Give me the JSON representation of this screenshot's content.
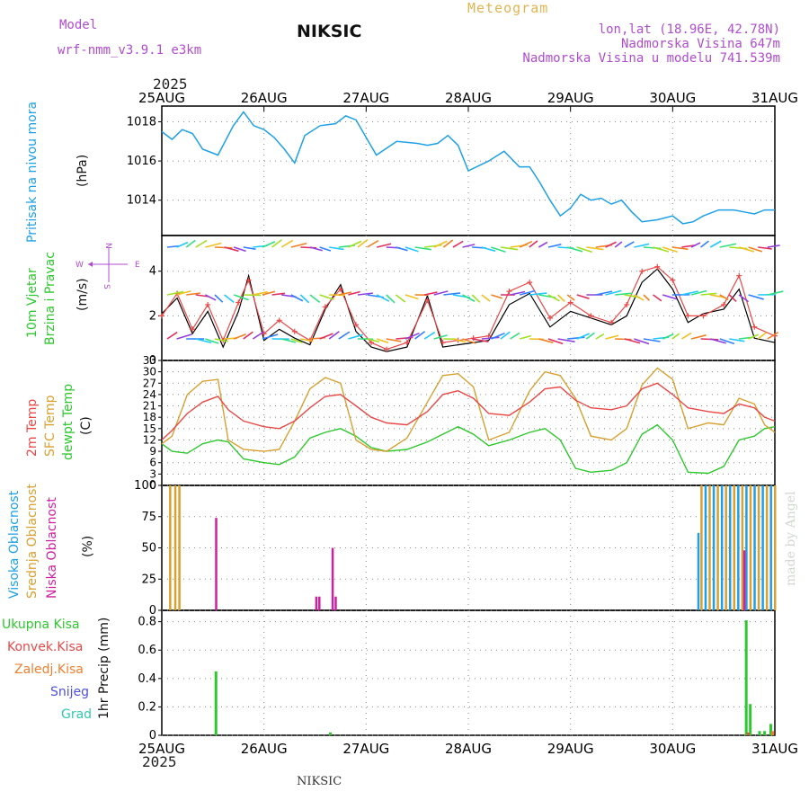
{
  "header": {
    "model_label": "Model",
    "model_name": "wrf-nmm_v3.9.1  e3km",
    "station": "NIKSIC",
    "chart_kind": "Meteogram",
    "coords": "lon,lat (18.96E, 42.78N)",
    "elevation": "Nadmorska Visina 647m",
    "model_elevation": "Nadmorska Visina u modelu 741.539m",
    "year": "2025",
    "footer_station": "NIKSIC",
    "credit": "made by Angel"
  },
  "colors": {
    "pressure": "#1ea0e6",
    "temp2m": "#e84848",
    "sfctemp": "#d8a030",
    "dewpt": "#2ec82e",
    "high_cloud": "#1ea0e6",
    "mid_cloud": "#d8a030",
    "low_cloud": "#d020a0",
    "total_precip": "#2ec82e",
    "conv_precip": "#e84848",
    "frozen_precip": "#f08030",
    "snow": "#5050e0",
    "graupel": "#30c8b0",
    "wind_label": "#2ec82e",
    "compass": "#b04cd0"
  },
  "labels": {
    "pressure": [
      "Pritisak na nivou mora",
      "(hPa)"
    ],
    "wind": [
      "10m Vjetar",
      "Brzina i Pravac",
      "(m/s)"
    ],
    "temp": [
      "2m Temp",
      "SFC Temp",
      "dewpt Temp",
      "(C)"
    ],
    "cloud": [
      "Visoka Oblacnost",
      "Srednja Oblacnost",
      "Niska Oblacnost",
      "(%)"
    ],
    "precip": [
      "Ukupna Kisa",
      "Konvek.Kisa",
      "Zaledj.Kisa",
      "Snijeg",
      "Grad",
      "1hr Precip (mm)"
    ],
    "compass": {
      "n": "N",
      "s": "S",
      "e": "E",
      "w": "W"
    }
  },
  "chart_data": [
    {
      "type": "line",
      "title": "Pritisak na nivou mora",
      "ylabel": "(hPa)",
      "categories": [
        "25AUG",
        "26AUG",
        "27AUG",
        "28AUG",
        "29AUG",
        "30AUG",
        "31AUG"
      ],
      "ylim": [
        1012.2,
        1018.8
      ],
      "yticks": [
        1014,
        1016,
        1018
      ],
      "x": [
        0,
        0.1,
        0.2,
        0.3,
        0.4,
        0.55,
        0.7,
        0.8,
        0.9,
        1.0,
        1.1,
        1.2,
        1.3,
        1.4,
        1.55,
        1.7,
        1.8,
        1.9,
        2.0,
        2.1,
        2.3,
        2.5,
        2.6,
        2.7,
        2.8,
        2.9,
        3.0,
        3.2,
        3.35,
        3.5,
        3.6,
        3.7,
        3.8,
        3.9,
        4.0,
        4.1,
        4.2,
        4.3,
        4.4,
        4.5,
        4.6,
        4.7,
        4.85,
        5.0,
        5.1,
        5.2,
        5.3,
        5.45,
        5.6,
        5.7,
        5.8,
        5.9,
        6.0
      ],
      "series": [
        {
          "name": "pressure",
          "values": [
            1017.5,
            1017.1,
            1017.6,
            1017.4,
            1016.6,
            1016.3,
            1017.8,
            1018.5,
            1017.8,
            1017.6,
            1017.2,
            1016.6,
            1015.9,
            1017.3,
            1017.8,
            1017.9,
            1018.3,
            1018.1,
            1017.2,
            1016.3,
            1017.0,
            1016.9,
            1016.8,
            1016.9,
            1017.3,
            1016.8,
            1015.5,
            1016.0,
            1016.5,
            1015.7,
            1015.7,
            1014.9,
            1014.0,
            1013.2,
            1013.6,
            1014.3,
            1014.0,
            1014.1,
            1013.8,
            1014.0,
            1013.4,
            1012.9,
            1013.0,
            1013.2,
            1012.8,
            1012.9,
            1013.2,
            1013.5,
            1013.5,
            1013.4,
            1013.3,
            1013.5,
            1013.5
          ]
        }
      ]
    },
    {
      "type": "line",
      "title": "10m Vjetar Brzina i Pravac",
      "ylabel": "(m/s)",
      "ylim": [
        0,
        5.6
      ],
      "yticks": [
        0,
        2,
        4
      ],
      "x": [
        0,
        0.15,
        0.3,
        0.45,
        0.6,
        0.75,
        0.85,
        1.0,
        1.15,
        1.3,
        1.45,
        1.6,
        1.75,
        1.9,
        2.05,
        2.2,
        2.4,
        2.6,
        2.75,
        2.9,
        3.05,
        3.2,
        3.4,
        3.6,
        3.8,
        4.0,
        4.2,
        4.4,
        4.55,
        4.7,
        4.85,
        5.0,
        5.15,
        5.3,
        5.5,
        5.65,
        5.8,
        6.0
      ],
      "series": [
        {
          "name": "speed",
          "values": [
            2.1,
            2.8,
            1.2,
            2.2,
            0.6,
            2.2,
            3.8,
            0.9,
            1.4,
            1.0,
            0.7,
            2.3,
            3.4,
            1.3,
            0.6,
            0.4,
            0.6,
            2.9,
            0.6,
            0.7,
            0.8,
            0.9,
            2.5,
            3.0,
            1.5,
            2.2,
            1.9,
            1.6,
            2.0,
            3.5,
            4.1,
            3.2,
            1.7,
            2.1,
            2.3,
            3.2,
            1.0,
            0.8
          ]
        },
        {
          "name": "gust",
          "values": [
            2.0,
            3.0,
            1.4,
            2.5,
            0.9,
            2.6,
            3.6,
            1.2,
            1.8,
            1.3,
            0.9,
            2.4,
            3.2,
            1.6,
            0.8,
            0.5,
            0.8,
            2.7,
            0.8,
            0.9,
            1.0,
            1.1,
            3.1,
            3.5,
            1.9,
            2.6,
            2.0,
            1.7,
            2.5,
            4.0,
            4.2,
            3.6,
            2.0,
            2.0,
            2.5,
            3.8,
            1.5,
            1.1
          ]
        }
      ]
    },
    {
      "type": "line",
      "title": "2m Temp / SFC Temp / dewpt Temp",
      "ylabel": "(C)",
      "ylim": [
        0,
        33
      ],
      "yticks": [
        0,
        3,
        6,
        9,
        12,
        15,
        18,
        21,
        24,
        27,
        30,
        33
      ],
      "x": [
        0,
        0.1,
        0.25,
        0.4,
        0.55,
        0.65,
        0.8,
        1.0,
        1.15,
        1.3,
        1.45,
        1.6,
        1.75,
        1.9,
        2.05,
        2.2,
        2.4,
        2.6,
        2.75,
        2.9,
        3.05,
        3.2,
        3.4,
        3.6,
        3.75,
        3.9,
        4.05,
        4.2,
        4.4,
        4.55,
        4.7,
        4.85,
        5.0,
        5.15,
        5.35,
        5.5,
        5.65,
        5.8,
        5.9,
        6.0
      ],
      "series": [
        {
          "name": "2m Temp",
          "values": [
            12,
            14.5,
            19,
            22,
            23.5,
            20,
            17,
            15.5,
            15,
            17,
            20.5,
            23.5,
            24,
            21,
            18,
            16.5,
            16,
            19.5,
            24,
            25,
            23,
            19,
            18.5,
            22,
            25.5,
            26,
            22.5,
            20.5,
            20,
            21,
            25.5,
            27,
            24,
            20.5,
            19.5,
            19,
            21.5,
            20.5,
            18,
            17
          ]
        },
        {
          "name": "SFC Temp",
          "values": [
            11,
            13,
            24,
            27.5,
            28,
            12,
            9.5,
            9,
            9.5,
            17,
            25.5,
            28.5,
            27,
            12,
            9.5,
            9,
            12.5,
            22,
            29,
            29.5,
            26,
            12,
            14,
            25,
            30,
            29,
            23,
            13,
            12,
            15,
            26.5,
            31,
            28,
            15,
            16.5,
            16,
            23,
            21.5,
            16,
            14
          ]
        },
        {
          "name": "dewpt Temp",
          "values": [
            11,
            9,
            8.5,
            11,
            12,
            11.5,
            7,
            6,
            5.5,
            7.5,
            12.5,
            14,
            15,
            13,
            10,
            9,
            9.5,
            11.5,
            13.5,
            15.5,
            13.5,
            10.5,
            12,
            14,
            15,
            12,
            4.5,
            3.5,
            4,
            6,
            13.5,
            16,
            12,
            3.5,
            3.2,
            5,
            12,
            13,
            15,
            15.5
          ]
        }
      ]
    },
    {
      "type": "bar",
      "title": "Oblacnost",
      "ylabel": "(%)",
      "ylim": [
        0,
        100
      ],
      "yticks": [
        0,
        25,
        50,
        75,
        100
      ],
      "series": [
        {
          "name": "Visoka Oblacnost",
          "x": [
            5.25,
            5.32,
            5.4,
            5.48,
            5.56,
            5.64,
            5.72,
            5.8,
            5.88,
            5.96
          ],
          "values": [
            62,
            100,
            100,
            100,
            100,
            100,
            100,
            100,
            100,
            100
          ]
        },
        {
          "name": "Srednja Oblacnost",
          "x": [
            0.08,
            0.13,
            0.17,
            5.28,
            5.36,
            5.44,
            5.52,
            5.6,
            5.68,
            5.76,
            5.84,
            5.92,
            6.0
          ],
          "values": [
            100,
            100,
            100,
            100,
            100,
            100,
            100,
            100,
            100,
            100,
            100,
            100,
            100
          ]
        },
        {
          "name": "Niska Oblacnost",
          "x": [
            0.53,
            1.51,
            1.54,
            1.67,
            1.7,
            5.7
          ],
          "values": [
            74,
            11,
            11,
            50,
            11,
            48
          ]
        }
      ]
    },
    {
      "type": "bar",
      "title": "1hr Precip",
      "ylabel": "1hr Precip (mm)",
      "ylim": [
        0,
        0.88
      ],
      "yticks": [
        0,
        0.2,
        0.4,
        0.6,
        0.8
      ],
      "series": [
        {
          "name": "Ukupna Kisa",
          "x": [
            0.53,
            1.65,
            5.72,
            5.76,
            5.85,
            5.9,
            5.96
          ],
          "values": [
            0.45,
            0.02,
            0.81,
            0.22,
            0.03,
            0.03,
            0.08
          ]
        },
        {
          "name": "Konvek.Kisa",
          "x": [
            5.74
          ],
          "values": [
            0.02
          ]
        },
        {
          "name": "Zaledj.Kisa",
          "x": [
            5.98
          ],
          "values": [
            0.03
          ]
        }
      ]
    }
  ]
}
